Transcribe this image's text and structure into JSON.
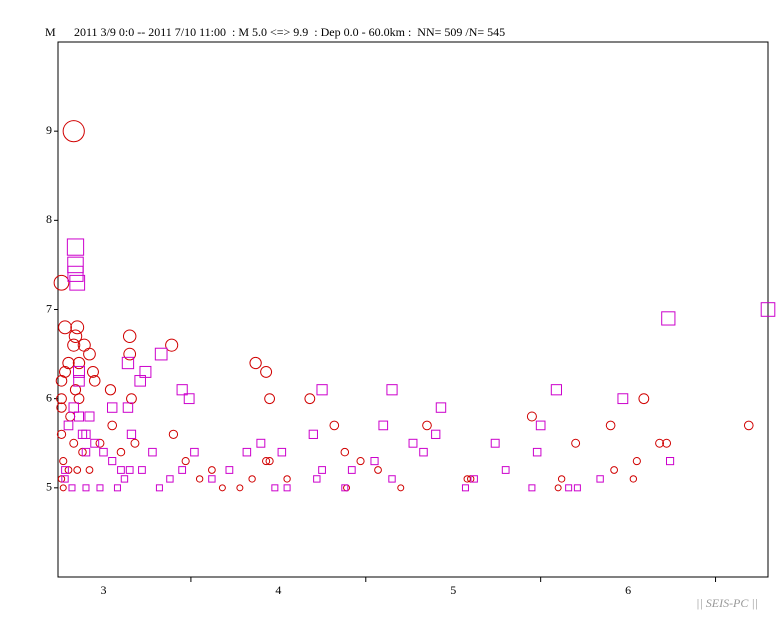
{
  "chart_data": {
    "type": "scatter",
    "title": "2011 3/9 0:0 -- 2011 7/10 11:00  : M 5.0 <=> 9.9  : Dep 0.0 - 60.0km :  NN= 509 /N= 545",
    "y_label": "M",
    "footer": "|| SEIS-PC ||",
    "xlim": [
      3.24,
      7.3
    ],
    "ylim": [
      4,
      10
    ],
    "xticks": [
      {
        "value": 3.5,
        "label": "3"
      },
      {
        "value": 4.5,
        "label": "4"
      },
      {
        "value": 5.5,
        "label": "5"
      },
      {
        "value": 6.5,
        "label": "6"
      }
    ],
    "xtick_marks": [
      4,
      5,
      6,
      7
    ],
    "yticks": [
      5,
      6,
      7,
      8,
      9
    ],
    "series": [
      {
        "marker": "circle",
        "color": "#d00000",
        "x": [
          3.33,
          3.26,
          3.28,
          3.35,
          3.34,
          3.33,
          3.42,
          3.3,
          3.28,
          3.26,
          3.39,
          3.36,
          3.44,
          3.45,
          3.34,
          3.36,
          3.26,
          3.26,
          3.54,
          3.65,
          3.65,
          3.66,
          3.89,
          4.37,
          4.43,
          4.45,
          4.68,
          6.59,
          7.19,
          6.72,
          6.68,
          3.26,
          3.27,
          3.26,
          3.27,
          3.3,
          3.38,
          3.42,
          3.48,
          3.55,
          3.6,
          3.68,
          3.9,
          3.97,
          4.05,
          4.12,
          4.18,
          4.28,
          4.35,
          4.43,
          4.45,
          4.55,
          4.82,
          4.88,
          4.89,
          4.97,
          5.07,
          5.2,
          5.35,
          5.58,
          5.6,
          5.95,
          6.1,
          6.12,
          6.2,
          6.4,
          6.42,
          6.55,
          6.53,
          3.31,
          3.33,
          3.35
        ],
        "values": [
          9.0,
          7.3,
          6.8,
          6.8,
          6.7,
          6.6,
          6.5,
          6.4,
          6.3,
          6.2,
          6.6,
          6.4,
          6.3,
          6.2,
          6.1,
          6.0,
          6.0,
          5.9,
          6.1,
          6.7,
          6.5,
          6.0,
          6.6,
          6.4,
          6.3,
          6.0,
          6.0,
          6.0,
          5.7,
          5.5,
          5.5,
          5.6,
          5.3,
          5.1,
          5.0,
          5.2,
          5.4,
          5.2,
          5.5,
          5.7,
          5.4,
          5.5,
          5.6,
          5.3,
          5.1,
          5.2,
          5.0,
          5.0,
          5.1,
          5.3,
          5.3,
          5.1,
          5.7,
          5.4,
          5.0,
          5.3,
          5.2,
          5.0,
          5.7,
          5.1,
          5.1,
          5.8,
          5.0,
          5.1,
          5.5,
          5.7,
          5.2,
          5.3,
          5.1,
          5.8,
          5.5,
          5.2
        ]
      },
      {
        "marker": "square",
        "color": "#cc00cc",
        "x": [
          3.34,
          3.34,
          3.34,
          3.35,
          7.3,
          6.73,
          3.83,
          3.74,
          3.71,
          3.64,
          3.95,
          3.99,
          4.75,
          5.15,
          6.09,
          6.47,
          5.43,
          3.36,
          3.36,
          3.33,
          3.3,
          3.4,
          3.45,
          3.5,
          3.55,
          3.6,
          3.62,
          3.28,
          3.28,
          3.32,
          3.4,
          3.48,
          3.58,
          3.65,
          3.72,
          3.78,
          3.82,
          3.88,
          3.95,
          4.02,
          4.12,
          4.22,
          4.32,
          4.4,
          4.48,
          4.52,
          4.55,
          4.7,
          4.72,
          4.75,
          4.88,
          4.92,
          5.05,
          5.1,
          5.15,
          5.27,
          5.33,
          5.4,
          5.57,
          5.62,
          5.74,
          5.8,
          5.95,
          5.98,
          6.0,
          6.16,
          6.21,
          6.34,
          6.74,
          3.36,
          3.38,
          3.4,
          3.42,
          3.55,
          3.64,
          3.66
        ],
        "values": [
          7.7,
          7.5,
          7.4,
          7.3,
          7.0,
          6.9,
          6.5,
          6.3,
          6.2,
          6.4,
          6.1,
          6.0,
          6.1,
          6.1,
          6.1,
          6.0,
          5.9,
          6.3,
          6.2,
          5.9,
          5.7,
          5.6,
          5.5,
          5.4,
          5.3,
          5.2,
          5.1,
          5.1,
          5.2,
          5.0,
          5.0,
          5.0,
          5.0,
          5.2,
          5.2,
          5.4,
          5.0,
          5.1,
          5.2,
          5.4,
          5.1,
          5.2,
          5.4,
          5.5,
          5.0,
          5.4,
          5.0,
          5.6,
          5.1,
          5.2,
          5.0,
          5.2,
          5.3,
          5.7,
          5.1,
          5.5,
          5.4,
          5.6,
          5.0,
          5.1,
          5.5,
          5.2,
          5.0,
          5.4,
          5.7,
          5.0,
          5.0,
          5.1,
          5.3,
          5.8,
          5.6,
          5.4,
          5.8,
          5.9,
          5.9,
          5.6
        ]
      }
    ]
  }
}
